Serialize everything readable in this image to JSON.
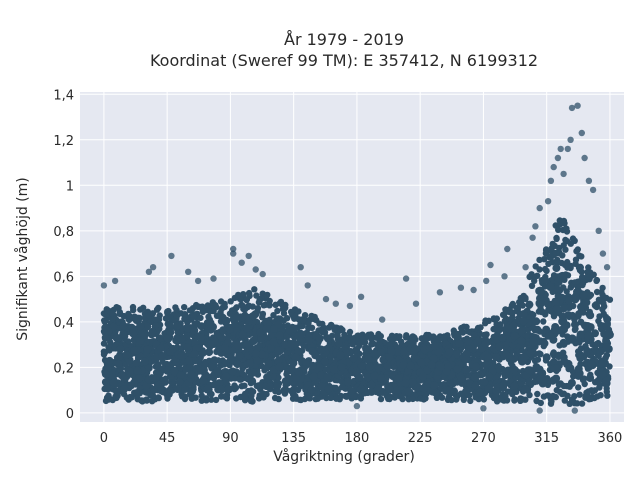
{
  "title_line1": "År 1979 - 2019",
  "title_line2": "Koordinat (Sweref 99 TM): E 357412, N 6199312",
  "colors": {
    "plot_bg": "#e5e8f1",
    "grid": "#ffffff",
    "marker": "#2f5068"
  },
  "chart_data": {
    "type": "scatter",
    "xlabel": "Vågriktning (grader)",
    "ylabel": "Signifikant våghöjd (m)",
    "xlim": [
      -17,
      370
    ],
    "ylim": [
      -0.04,
      1.41
    ],
    "x_ticks": [
      0,
      45,
      90,
      135,
      180,
      225,
      270,
      315,
      360
    ],
    "x_tick_labels": [
      "0",
      "45",
      "90",
      "135",
      "180",
      "225",
      "270",
      "315",
      "360"
    ],
    "y_ticks": [
      0,
      0.2,
      0.4,
      0.6,
      0.8,
      1.0,
      1.2,
      1.4
    ],
    "y_tick_labels": [
      "0",
      "0,2",
      "0,4",
      "0,6",
      "0,8",
      "1",
      "1,2",
      "1,4"
    ],
    "grid": true,
    "dense_band": [
      {
        "x": 0,
        "ymin": 0.05,
        "ymax": 0.47
      },
      {
        "x": 45,
        "ymin": 0.05,
        "ymax": 0.46
      },
      {
        "x": 90,
        "ymin": 0.05,
        "ymax": 0.5
      },
      {
        "x": 105,
        "ymin": 0.05,
        "ymax": 0.55
      },
      {
        "x": 135,
        "ymin": 0.05,
        "ymax": 0.47
      },
      {
        "x": 165,
        "ymin": 0.06,
        "ymax": 0.38
      },
      {
        "x": 180,
        "ymin": 0.06,
        "ymax": 0.35
      },
      {
        "x": 225,
        "ymin": 0.06,
        "ymax": 0.34
      },
      {
        "x": 270,
        "ymin": 0.05,
        "ymax": 0.4
      },
      {
        "x": 295,
        "ymin": 0.05,
        "ymax": 0.5
      },
      {
        "x": 315,
        "ymin": 0.04,
        "ymax": 0.75
      },
      {
        "x": 325,
        "ymin": 0.04,
        "ymax": 0.87
      },
      {
        "x": 340,
        "ymin": 0.04,
        "ymax": 0.7
      },
      {
        "x": 360,
        "ymin": 0.06,
        "ymax": 0.5
      }
    ],
    "outliers": [
      {
        "x": 0,
        "y": 0.56
      },
      {
        "x": 8,
        "y": 0.58
      },
      {
        "x": 32,
        "y": 0.62
      },
      {
        "x": 35,
        "y": 0.64
      },
      {
        "x": 48,
        "y": 0.69
      },
      {
        "x": 60,
        "y": 0.62
      },
      {
        "x": 67,
        "y": 0.58
      },
      {
        "x": 78,
        "y": 0.59
      },
      {
        "x": 92,
        "y": 0.72
      },
      {
        "x": 92,
        "y": 0.7
      },
      {
        "x": 98,
        "y": 0.66
      },
      {
        "x": 103,
        "y": 0.69
      },
      {
        "x": 108,
        "y": 0.63
      },
      {
        "x": 113,
        "y": 0.61
      },
      {
        "x": 140,
        "y": 0.64
      },
      {
        "x": 145,
        "y": 0.56
      },
      {
        "x": 158,
        "y": 0.5
      },
      {
        "x": 165,
        "y": 0.48
      },
      {
        "x": 175,
        "y": 0.47
      },
      {
        "x": 183,
        "y": 0.51
      },
      {
        "x": 198,
        "y": 0.41
      },
      {
        "x": 215,
        "y": 0.59
      },
      {
        "x": 222,
        "y": 0.48
      },
      {
        "x": 239,
        "y": 0.53
      },
      {
        "x": 254,
        "y": 0.55
      },
      {
        "x": 263,
        "y": 0.54
      },
      {
        "x": 272,
        "y": 0.58
      },
      {
        "x": 275,
        "y": 0.65
      },
      {
        "x": 285,
        "y": 0.6
      },
      {
        "x": 287,
        "y": 0.72
      },
      {
        "x": 300,
        "y": 0.64
      },
      {
        "x": 305,
        "y": 0.77
      },
      {
        "x": 307,
        "y": 0.82
      },
      {
        "x": 310,
        "y": 0.9
      },
      {
        "x": 316,
        "y": 0.93
      },
      {
        "x": 318,
        "y": 1.02
      },
      {
        "x": 320,
        "y": 1.08
      },
      {
        "x": 323,
        "y": 1.12
      },
      {
        "x": 325,
        "y": 1.16
      },
      {
        "x": 327,
        "y": 1.05
      },
      {
        "x": 330,
        "y": 1.16
      },
      {
        "x": 332,
        "y": 1.2
      },
      {
        "x": 333,
        "y": 1.34
      },
      {
        "x": 337,
        "y": 1.35
      },
      {
        "x": 340,
        "y": 1.23
      },
      {
        "x": 342,
        "y": 1.12
      },
      {
        "x": 345,
        "y": 1.02
      },
      {
        "x": 348,
        "y": 0.98
      },
      {
        "x": 352,
        "y": 0.8
      },
      {
        "x": 355,
        "y": 0.7
      },
      {
        "x": 358,
        "y": 0.64
      },
      {
        "x": 180,
        "y": 0.03
      },
      {
        "x": 270,
        "y": 0.02
      },
      {
        "x": 310,
        "y": 0.01
      },
      {
        "x": 335,
        "y": 0.01
      }
    ]
  }
}
